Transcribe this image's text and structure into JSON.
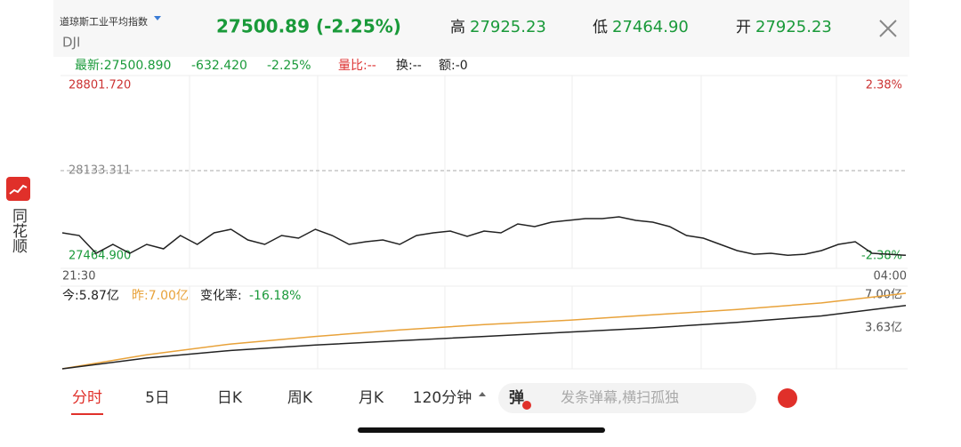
{
  "header": {
    "name": "道琼斯工业平均指数",
    "code": "DJI",
    "price": "27500.89 (-2.25%)",
    "high_label": "高",
    "high": "27925.23",
    "low_label": "低",
    "low": "27464.90",
    "open_label": "开",
    "open": "27925.23"
  },
  "info": {
    "latest": "最新:27500.890",
    "change": "-632.420",
    "pct": "-2.25%",
    "ratio": "量比:--",
    "turnover": "换:--",
    "amount": "额:-0"
  },
  "sidebar": {
    "app": "同花顺"
  },
  "price_chart": {
    "axis_max": 28801.72,
    "axis_min": 27464.9,
    "top_label": "28801.720",
    "mid_label": "28133.311",
    "bottom_label": "27464.900",
    "right_top": "2.38%",
    "right_bottom": "-2.38%",
    "time_start": "21:30",
    "time_end": "04:00",
    "values": [
      27644.9,
      27624.1,
      27485.6,
      27554.9,
      27485.6,
      27554.9,
      27520.2,
      27624.1,
      27554.9,
      27644.9,
      27672.6,
      27589.5,
      27554.9,
      27624.1,
      27603.3,
      27672.6,
      27624.1,
      27554.9,
      27575.6,
      27589.5,
      27554.9,
      27624.1,
      27644.9,
      27658.7,
      27617.2,
      27658.7,
      27644.9,
      27714.2,
      27693.5,
      27728.0,
      27742.0,
      27755.8,
      27755.8,
      27769.6,
      27742.0,
      27728.0,
      27693.5,
      27624.1,
      27603.3,
      27554.9,
      27506.4,
      27478.0,
      27485.6,
      27470.0,
      27478.0,
      27506.4,
      27554.9,
      27575.6,
      27485.6,
      27478.0,
      27470.0
    ]
  },
  "volume_chart": {
    "today": "今:5.87亿",
    "yesterday": "昨:7.00亿",
    "change_label": "变化率:",
    "change": "-16.18%",
    "axis_max": 7.0,
    "axis_mid": 3.63,
    "max_label": "7.00亿",
    "mid_label": "3.63亿",
    "today_values": [
      0,
      1.0,
      1.7,
      2.2,
      2.6,
      3.0,
      3.4,
      3.8,
      4.3,
      4.9,
      5.87
    ],
    "yesterday_values": [
      0,
      1.3,
      2.3,
      3.0,
      3.6,
      4.1,
      4.5,
      5.0,
      5.5,
      6.1,
      7.0
    ]
  },
  "tabs": [
    "分时",
    "5日",
    "日K",
    "周K",
    "月K",
    "120分钟"
  ],
  "danmaku": {
    "icon": "弹",
    "placeholder": "发条弹幕,横扫孤独"
  }
}
